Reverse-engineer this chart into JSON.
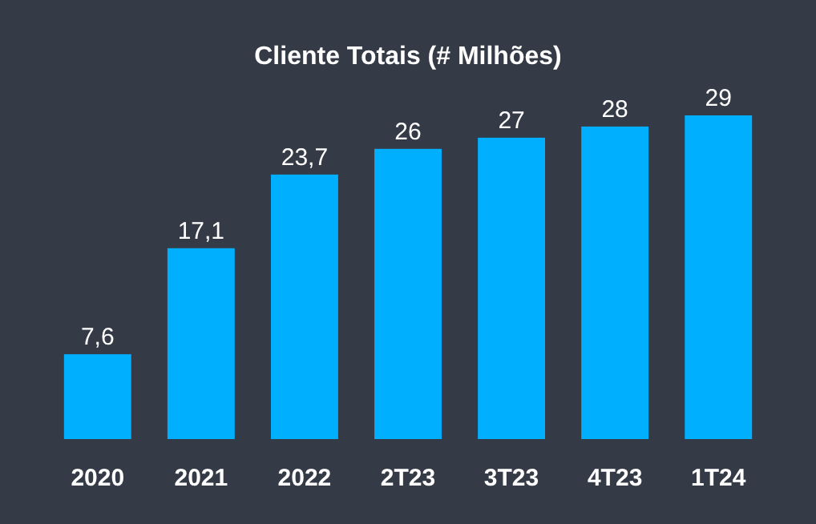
{
  "chart_data": {
    "type": "bar",
    "title": "Cliente Totais (# Milhões)",
    "categories": [
      "2020",
      "2021",
      "2022",
      "2T23",
      "3T23",
      "4T23",
      "1T24"
    ],
    "values": [
      7.6,
      17.1,
      23.7,
      26,
      27,
      28,
      29
    ],
    "value_labels": [
      "7,6",
      "17,1",
      "23,7",
      "26",
      "27",
      "28",
      "29"
    ],
    "color": "#00b0ff"
  }
}
